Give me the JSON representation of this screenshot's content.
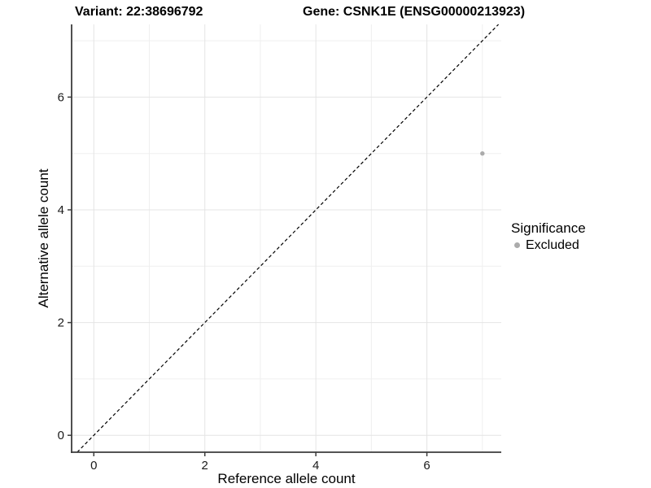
{
  "header": {
    "variant_label": "Variant: 22:38696792",
    "gene_label": "Gene: CSNK1E (ENSG00000213923)"
  },
  "chart_data": {
    "type": "scatter",
    "title": "Variant: 22:38696792  Gene: CSNK1E (ENSG00000213923)",
    "xlabel": "Reference allele count",
    "ylabel": "Alternative allele count",
    "xlim": [
      -0.4,
      7.34
    ],
    "ylim": [
      -0.3,
      7.29
    ],
    "x_ticks": [
      0,
      2,
      4,
      6
    ],
    "y_ticks": [
      0,
      2,
      4,
      6
    ],
    "x_minor_gridlines": [
      1,
      3,
      5,
      7
    ],
    "y_minor_gridlines": [
      1,
      3,
      5,
      7
    ],
    "grid": true,
    "points": [
      {
        "x": 7,
        "y": 5,
        "series": "Excluded"
      }
    ],
    "reference_line": {
      "kind": "identity y=x",
      "style": "dashed",
      "color": "#000000"
    },
    "legend": {
      "title": "Significance",
      "position": "right",
      "entries": [
        {
          "label": "Excluded",
          "color": "#ababab"
        }
      ]
    },
    "colors": {
      "background": "#ffffff",
      "major_grid": "#e4e4e4",
      "minor_grid": "#efefef",
      "axis_line": "#3c3c3c",
      "tick_mark": "#3c3c3c",
      "tick_label": "#1a1a1a",
      "point": "#ababab",
      "diagonal": "#000000"
    }
  }
}
